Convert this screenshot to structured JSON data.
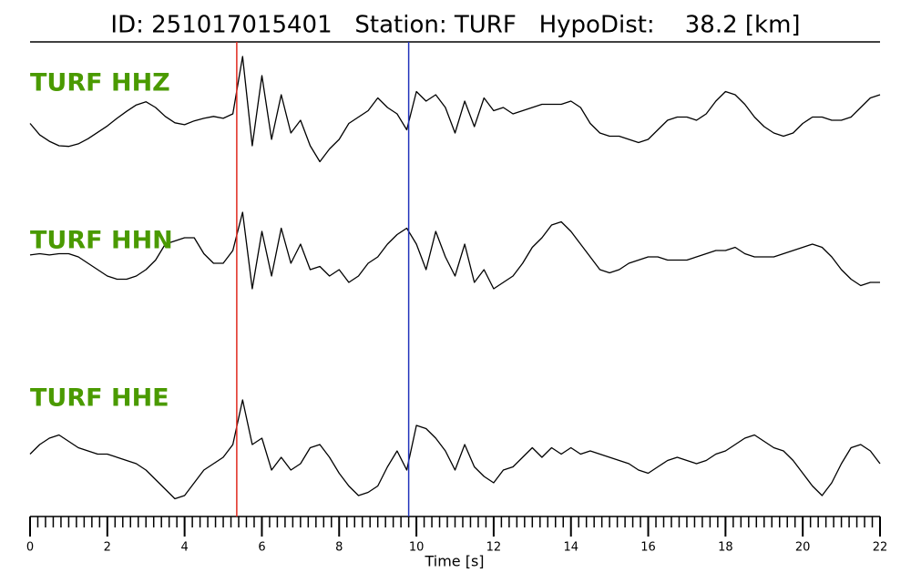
{
  "chart_data": {
    "type": "waveform",
    "title": "ID: 251017015401   Station: TURF   HypoDist:    38.2 [km]",
    "xlabel": "Time [s]",
    "xlim": [
      0,
      22
    ],
    "xticks": [
      0,
      2,
      4,
      6,
      8,
      10,
      12,
      14,
      16,
      18,
      20,
      22
    ],
    "xminor_step": 0.2,
    "ylim": [
      -1,
      1
    ],
    "label_color": "#4a9a00",
    "markers": [
      {
        "x": 5.35,
        "color": "#e0281e"
      },
      {
        "x": 9.8,
        "color": "#2233bb"
      }
    ],
    "x": [
      0,
      0.25,
      0.5,
      0.75,
      1,
      1.25,
      1.5,
      1.75,
      2,
      2.25,
      2.5,
      2.75,
      3,
      3.25,
      3.5,
      3.75,
      4,
      4.25,
      4.5,
      4.75,
      5,
      5.25,
      5.5,
      5.75,
      6,
      6.25,
      6.5,
      6.75,
      7,
      7.25,
      7.5,
      7.75,
      8,
      8.25,
      8.5,
      8.75,
      9,
      9.25,
      9.5,
      9.75,
      10,
      10.25,
      10.5,
      10.75,
      11,
      11.25,
      11.5,
      11.75,
      12,
      12.25,
      12.5,
      12.75,
      13,
      13.25,
      13.5,
      13.75,
      14,
      14.25,
      14.5,
      14.75,
      15,
      15.25,
      15.5,
      15.75,
      16,
      16.25,
      16.5,
      16.75,
      17,
      17.25,
      17.5,
      17.75,
      18,
      18.25,
      18.5,
      18.75,
      19,
      19.25,
      19.5,
      19.75,
      20,
      20.25,
      20.5,
      20.75,
      21,
      21.25,
      21.5,
      21.75,
      22
    ],
    "series": [
      {
        "name": "TURF HHZ",
        "color": "#000000",
        "values": [
          -0.15,
          -0.33,
          -0.43,
          -0.5,
          -0.51,
          -0.47,
          -0.39,
          -0.29,
          -0.19,
          -0.07,
          0.04,
          0.14,
          0.19,
          0.1,
          -0.04,
          -0.14,
          -0.17,
          -0.11,
          -0.07,
          -0.04,
          -0.07,
          0,
          0.9,
          -0.5,
          0.6,
          -0.4,
          0.3,
          -0.3,
          -0.1,
          -0.5,
          -0.75,
          -0.55,
          -0.4,
          -0.15,
          -0.05,
          0.05,
          0.25,
          0.1,
          0,
          -0.25,
          0.35,
          0.2,
          0.3,
          0.1,
          -0.3,
          0.2,
          -0.2,
          0.25,
          0.05,
          0.1,
          0,
          0.05,
          0.1,
          0.15,
          0.15,
          0.15,
          0.2,
          0.1,
          -0.15,
          -0.3,
          -0.35,
          -0.35,
          -0.4,
          -0.45,
          -0.4,
          -0.25,
          -0.1,
          -0.05,
          -0.05,
          -0.1,
          0,
          0.2,
          0.35,
          0.3,
          0.15,
          -0.05,
          -0.2,
          -0.3,
          -0.35,
          -0.3,
          -0.15,
          -0.05,
          -0.05,
          -0.1,
          -0.1,
          -0.05,
          0.1,
          0.25,
          0.3
        ]
      },
      {
        "name": "TURF HHN",
        "color": "#000000",
        "values": [
          -0.07,
          -0.05,
          -0.07,
          -0.05,
          -0.05,
          -0.1,
          -0.2,
          -0.3,
          -0.4,
          -0.45,
          -0.45,
          -0.4,
          -0.3,
          -0.15,
          0.1,
          0.15,
          0.2,
          0.2,
          -0.05,
          -0.2,
          -0.2,
          0,
          0.6,
          -0.6,
          0.3,
          -0.4,
          0.35,
          -0.2,
          0.1,
          -0.3,
          -0.25,
          -0.4,
          -0.3,
          -0.5,
          -0.4,
          -0.2,
          -0.1,
          0.1,
          0.25,
          0.35,
          0.1,
          -0.3,
          0.3,
          -0.1,
          -0.4,
          0.1,
          -0.5,
          -0.3,
          -0.6,
          -0.5,
          -0.4,
          -0.2,
          0.05,
          0.2,
          0.4,
          0.45,
          0.3,
          0.1,
          -0.1,
          -0.3,
          -0.35,
          -0.3,
          -0.2,
          -0.15,
          -0.1,
          -0.1,
          -0.15,
          -0.15,
          -0.15,
          -0.1,
          -0.05,
          0,
          0,
          0.05,
          -0.05,
          -0.1,
          -0.1,
          -0.1,
          -0.05,
          0,
          0.05,
          0.1,
          0.05,
          -0.1,
          -0.3,
          -0.45,
          -0.55,
          -0.5,
          -0.5
        ]
      },
      {
        "name": "TURF HHE",
        "color": "#000000",
        "values": [
          -0.05,
          0.1,
          0.2,
          0.25,
          0.15,
          0.05,
          0,
          -0.05,
          -0.05,
          -0.1,
          -0.15,
          -0.2,
          -0.3,
          -0.45,
          -0.6,
          -0.75,
          -0.7,
          -0.5,
          -0.3,
          -0.2,
          -0.1,
          0.1,
          0.8,
          0.1,
          0.2,
          -0.3,
          -0.1,
          -0.3,
          -0.2,
          0.05,
          0.1,
          -0.1,
          -0.35,
          -0.55,
          -0.7,
          -0.65,
          -0.55,
          -0.25,
          0,
          -0.3,
          0.4,
          0.35,
          0.2,
          0,
          -0.3,
          0.1,
          -0.25,
          -0.4,
          -0.5,
          -0.3,
          -0.25,
          -0.1,
          0.05,
          -0.1,
          0.05,
          -0.05,
          0.05,
          -0.05,
          0,
          -0.05,
          -0.1,
          -0.15,
          -0.2,
          -0.3,
          -0.35,
          -0.25,
          -0.15,
          -0.1,
          -0.15,
          -0.2,
          -0.15,
          -0.05,
          0,
          0.1,
          0.2,
          0.25,
          0.15,
          0.05,
          0,
          -0.15,
          -0.35,
          -0.55,
          -0.7,
          -0.5,
          -0.2,
          0.05,
          0.1,
          0,
          -0.2
        ]
      }
    ]
  }
}
